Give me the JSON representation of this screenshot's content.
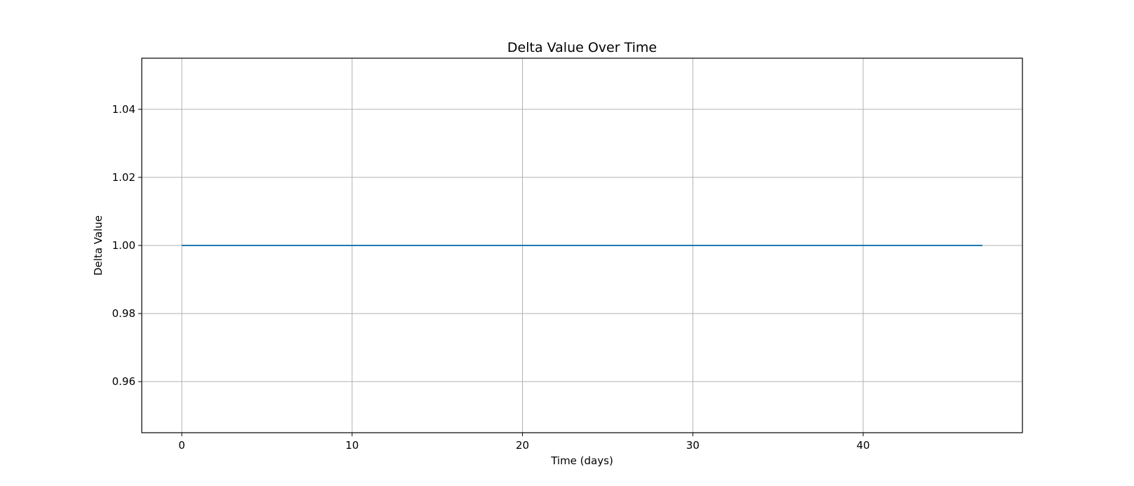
{
  "chart_data": {
    "type": "line",
    "title": "Delta Value Over Time",
    "xlabel": "Time (days)",
    "ylabel": "Delta Value",
    "xlim": [
      -2.35,
      49.35
    ],
    "ylim": [
      0.945,
      1.055
    ],
    "x_ticks": [
      0,
      10,
      20,
      30,
      40
    ],
    "x_tick_labels": [
      "0",
      "10",
      "20",
      "30",
      "40"
    ],
    "y_ticks": [
      0.96,
      0.98,
      1.0,
      1.02,
      1.04
    ],
    "y_tick_labels": [
      "0.96",
      "0.98",
      "1.00",
      "1.02",
      "1.04"
    ],
    "grid": true,
    "series": [
      {
        "color": "#1f77b4",
        "x": [
          0,
          1,
          2,
          3,
          4,
          5,
          6,
          7,
          8,
          9,
          10,
          11,
          12,
          13,
          14,
          15,
          16,
          17,
          18,
          19,
          20,
          21,
          22,
          23,
          24,
          25,
          26,
          27,
          28,
          29,
          30,
          31,
          32,
          33,
          34,
          35,
          36,
          37,
          38,
          39,
          40,
          41,
          42,
          43,
          44,
          45,
          46,
          47
        ],
        "y": [
          1,
          1,
          1,
          1,
          1,
          1,
          1,
          1,
          1,
          1,
          1,
          1,
          1,
          1,
          1,
          1,
          1,
          1,
          1,
          1,
          1,
          1,
          1,
          1,
          1,
          1,
          1,
          1,
          1,
          1,
          1,
          1,
          1,
          1,
          1,
          1,
          1,
          1,
          1,
          1,
          1,
          1,
          1,
          1,
          1,
          1,
          1,
          1
        ]
      }
    ]
  }
}
